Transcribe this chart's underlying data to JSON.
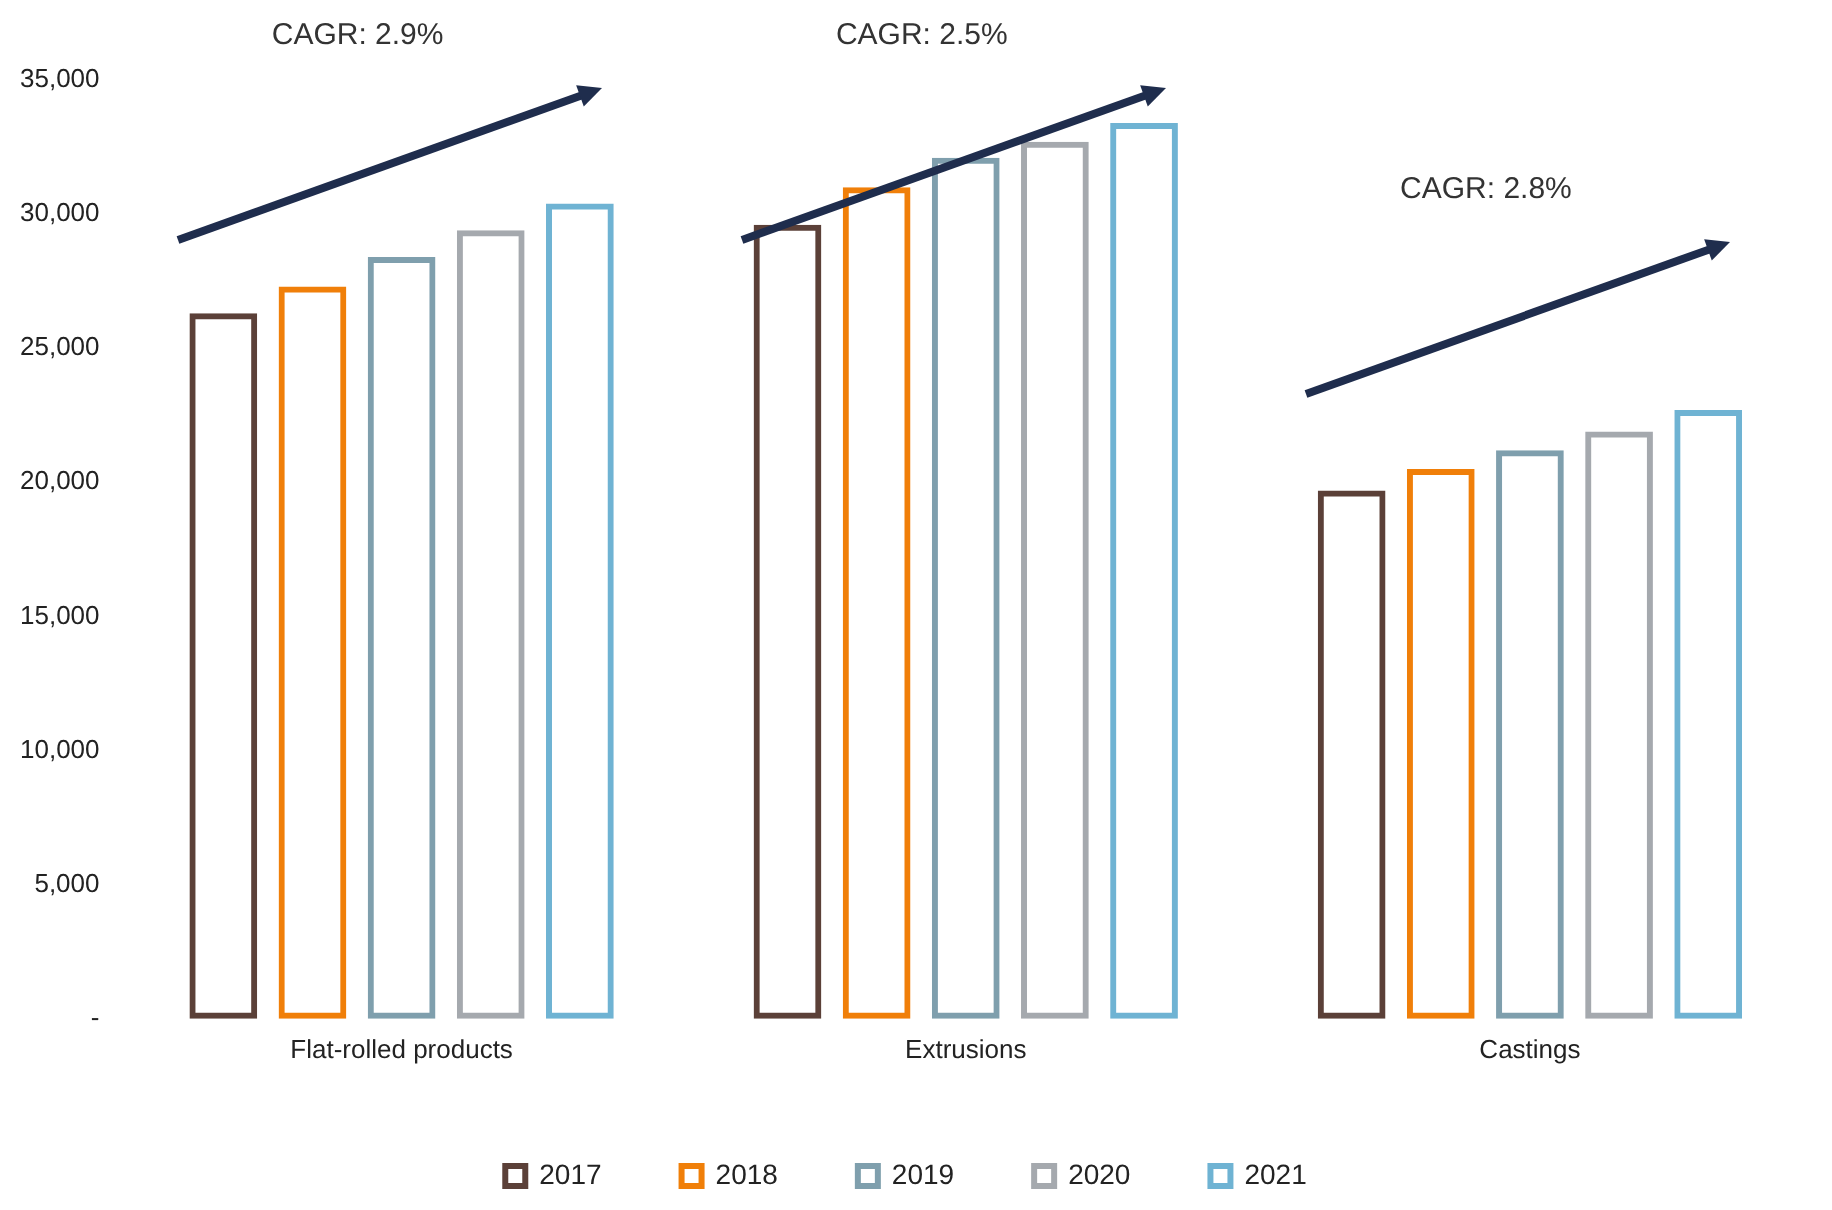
{
  "chart_data": {
    "type": "bar",
    "categories": [
      "Flat-rolled products",
      "Extrusions",
      "Castings"
    ],
    "series": [
      {
        "name": "2017",
        "color": "#5b4038",
        "values": [
          26300,
          29600,
          19700
        ]
      },
      {
        "name": "2018",
        "color": "#f07f09",
        "values": [
          27300,
          31000,
          20500
        ]
      },
      {
        "name": "2019",
        "color": "#7f9fad",
        "values": [
          28400,
          32100,
          21200
        ]
      },
      {
        "name": "2020",
        "color": "#a5a9ae",
        "values": [
          29400,
          32700,
          21900
        ]
      },
      {
        "name": "2021",
        "color": "#6fb3d3",
        "values": [
          30400,
          33400,
          22700
        ]
      }
    ],
    "ylim": [
      0,
      35000
    ],
    "yticks": [
      {
        "value": 0,
        "label": "-"
      },
      {
        "value": 5000,
        "label": "5,000"
      },
      {
        "value": 10000,
        "label": "10,000"
      },
      {
        "value": 15000,
        "label": "15,000"
      },
      {
        "value": 20000,
        "label": "20,000"
      },
      {
        "value": 25000,
        "label": "25,000"
      },
      {
        "value": 30000,
        "label": "30,000"
      },
      {
        "value": 35000,
        "label": "35,000"
      }
    ],
    "grid": false,
    "legend": "bottom",
    "annotations": [
      "CAGR: 2.9%",
      "CAGR: 2.5%",
      "CAGR: 2.8%"
    ]
  }
}
